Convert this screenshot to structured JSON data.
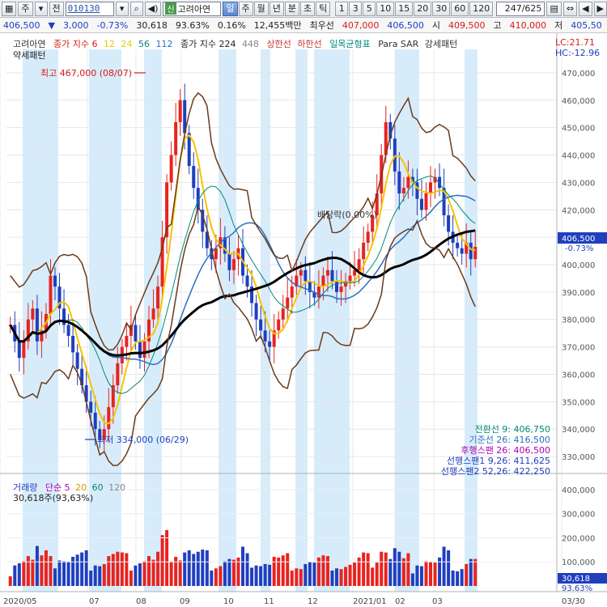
{
  "toolbar": {
    "code_prefix_1": "주",
    "code_prefix_2": "전",
    "code": "010130",
    "name_badge": "신",
    "name": "고려아연",
    "periods": [
      "일",
      "주",
      "월",
      "년",
      "분",
      "초",
      "틱"
    ],
    "active_period": "일",
    "intervals": [
      "1",
      "3",
      "5",
      "10",
      "15",
      "20",
      "30",
      "60",
      "120"
    ],
    "count": "247/625"
  },
  "quote": {
    "price": "406,500",
    "change_arrow": "▼",
    "change": "3,000",
    "change_pct": "-0.73%",
    "volume": "30,618",
    "volume_ratio": "93.63%",
    "turnover_ratio": "0.16%",
    "amount": "12,455백만",
    "best_label": "최우선",
    "best_bid": "407,000",
    "best_ask": "406,500",
    "open_label": "시",
    "open": "409,500",
    "high_label": "고",
    "high": "410,000",
    "low_label": "저",
    "low": "405,50"
  },
  "legend": {
    "name": "고려아연",
    "ma_label": "종가 지수 6",
    "ma12": "12",
    "ma24": "24",
    "ma56": "56",
    "ma112": "112",
    "ma224_label": "종가 지수 224",
    "ma448": "448",
    "upper": "상한선",
    "lower": "하한선",
    "ichimoku": "일목균형표",
    "psar": "Para SAR",
    "pattern": "강세패턴",
    "pattern2": "약세패턴",
    "lc": "LC:21.71",
    "hc": "HC:-12.96"
  },
  "annotations": {
    "high": "최고 467,000 (08/07)",
    "low": "최저 334,000 (06/29)",
    "dividend": "배당락(0.00%)",
    "current_price": "406,500",
    "current_pct": "-0.73%"
  },
  "ichimoku_values": [
    {
      "label": "전환선 9: 406,750",
      "color": "#00897b"
    },
    {
      "label": "기준선 26: 416,500",
      "color": "#2c6fbf"
    },
    {
      "label": "후행스팬 26: 406,500",
      "color": "#b000b0"
    },
    {
      "label": "선행스팬1 9,26: 411,625",
      "color": "#1f3fbf"
    },
    {
      "label": "선행스팬2 52,26: 422,250",
      "color": "#1f3fbf"
    }
  ],
  "volume_legend": {
    "title": "거래량",
    "ma_label": "단순 5",
    "ma20": "20",
    "ma60": "60",
    "ma120": "120",
    "value": "30,618주(93,63%)"
  },
  "price_axis": [
    "470,000",
    "460,000",
    "450,000",
    "440,000",
    "430,000",
    "420,000",
    "410,000",
    "400,000",
    "390,000",
    "380,000",
    "370,000",
    "360,000",
    "350,000",
    "340,000",
    "330,000"
  ],
  "volume_axis": [
    "400,000",
    "300,000",
    "200,000",
    "100,000"
  ],
  "volume_current": "30,618",
  "volume_current_pct": "93.63%",
  "date_axis": [
    "2020/05",
    "07",
    "08",
    "09",
    "10",
    "11",
    "12",
    "2021/01",
    "02",
    "03",
    "03/30"
  ],
  "colors": {
    "up": "#e8231f",
    "down": "#1f3fbf",
    "band": "#d7ecfb",
    "bb": "#6b3a1a",
    "ma224": "#000000"
  },
  "chart_data": {
    "type": "candlestick",
    "price_range": [
      325000,
      475000
    ],
    "volume_range": [
      0,
      420000
    ],
    "close_series": [
      378000,
      372000,
      366000,
      372000,
      380000,
      384000,
      372000,
      376000,
      382000,
      396000,
      392000,
      384000,
      378000,
      374000,
      368000,
      362000,
      356000,
      350000,
      346000,
      340000,
      336000,
      340000,
      348000,
      356000,
      364000,
      370000,
      374000,
      378000,
      372000,
      366000,
      372000,
      380000,
      384000,
      392000,
      410000,
      430000,
      440000,
      452000,
      460000,
      448000,
      436000,
      428000,
      420000,
      412000,
      406000,
      402000,
      406000,
      410000,
      404000,
      398000,
      402000,
      406000,
      396000,
      392000,
      386000,
      380000,
      376000,
      372000,
      370000,
      376000,
      380000,
      384000,
      388000,
      392000,
      396000,
      398000,
      394000,
      390000,
      388000,
      392000,
      396000,
      398000,
      394000,
      390000,
      392000,
      394000,
      396000,
      398000,
      402000,
      408000,
      412000,
      418000,
      426000,
      440000,
      452000,
      446000,
      434000,
      426000,
      428000,
      432000,
      430000,
      424000,
      420000,
      426000,
      430000,
      432000,
      428000,
      418000,
      412000,
      408000,
      406000,
      404000,
      408000,
      402000,
      406500
    ]
  }
}
